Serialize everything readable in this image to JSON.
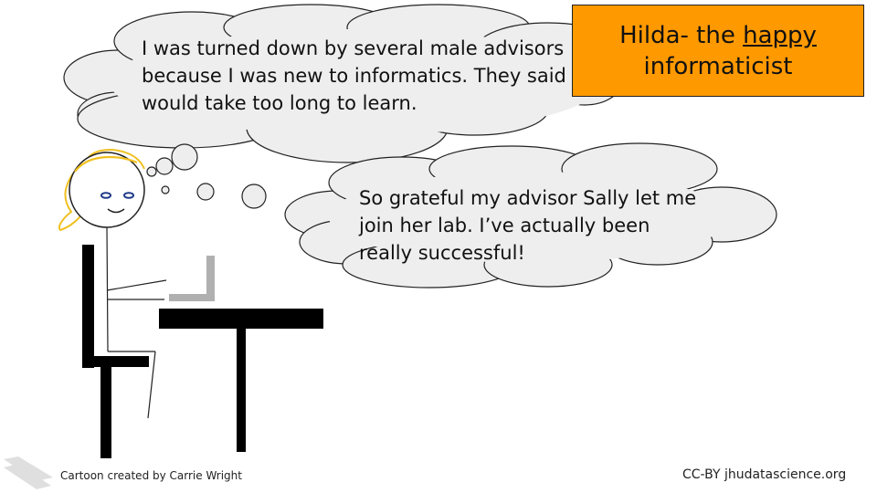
{
  "title": {
    "prefix": "Hilda- the ",
    "emphasis": "happy",
    "line2": "informaticist"
  },
  "thought_bubble": {
    "text": "I was turned down by several male advisors\nbecause I was new to informatics. They said I\nwould take too long to learn."
  },
  "speech_bubble": {
    "text": "So grateful my advisor Sally let me\njoin her lab. I’ve  actually been\nreally successful!"
  },
  "footer": {
    "left_credit": "Cartoon created by Carrie Wright",
    "right_credit": "CC-BY jhudatascience.org"
  },
  "colors": {
    "title_bg": "#ff9900",
    "cloud_fill": "#eeeeee",
    "hair": "#f0c020",
    "eyes": "#1f3a8a",
    "laptop": "#b0b0b0"
  }
}
